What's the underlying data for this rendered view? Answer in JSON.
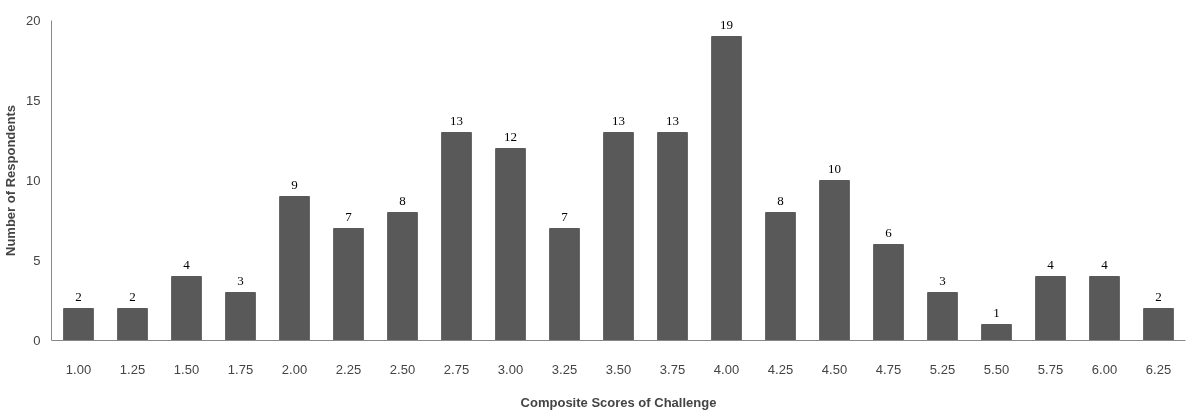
{
  "chart_data": {
    "type": "bar",
    "xlabel": "Composite Scores of Challenge",
    "ylabel": "Number of Respondents",
    "categories": [
      "1.00",
      "1.25",
      "1.50",
      "1.75",
      "2.00",
      "2.25",
      "2.50",
      "2.75",
      "3.00",
      "3.25",
      "3.50",
      "3.75",
      "4.00",
      "4.25",
      "4.50",
      "4.75",
      "5.25",
      "5.50",
      "5.75",
      "6.00",
      "6.25"
    ],
    "values": [
      2,
      2,
      4,
      3,
      9,
      7,
      8,
      13,
      12,
      7,
      13,
      13,
      19,
      8,
      10,
      6,
      3,
      1,
      4,
      4,
      2
    ],
    "color": "#595959",
    "ylim": [
      0,
      20
    ],
    "yticks": [
      0,
      5,
      10,
      15,
      20
    ],
    "grid": false,
    "data_labels": true
  }
}
